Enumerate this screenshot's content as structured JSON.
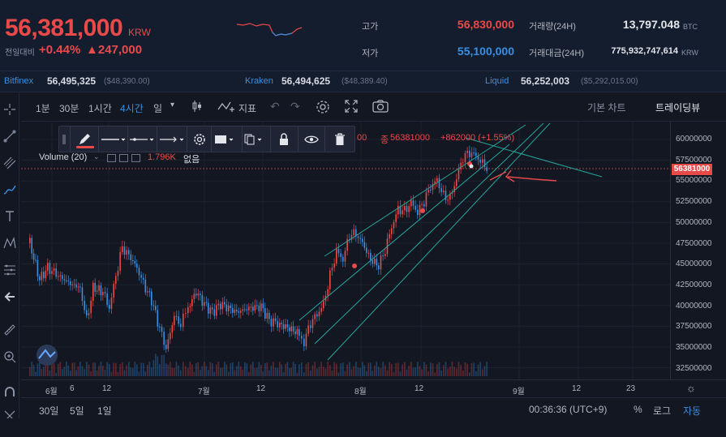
{
  "header": {
    "price": "56,381,000",
    "currency": "KRW",
    "change_label": "전일대비",
    "change_pct": "+0.44%",
    "change_amt": "▲247,000",
    "high_label": "고가",
    "high_value": "56,830,000",
    "low_label": "저가",
    "low_value": "55,100,000",
    "vol_label": "거래량(24H)",
    "vol_value": "13,797.048",
    "vol_unit": "BTC",
    "amount_label": "거래대금(24H)",
    "amount_value": "775,932,747,614",
    "amount_unit": "KRW"
  },
  "exchanges": [
    {
      "name": "Bitfinex",
      "value": "56,495,325",
      "usd": "($48,390.00)"
    },
    {
      "name": "Kraken",
      "value": "56,494,625",
      "usd": "($48,389.40)"
    },
    {
      "name": "Liquid",
      "value": "56,252,003",
      "usd": "($5,292,015.00)"
    }
  ],
  "toolbar": {
    "timeframes": [
      "1분",
      "30분",
      "1시간",
      "4시간",
      "일"
    ],
    "active_timeframe": "4시간",
    "indicator_label": "지표",
    "basic_chart": "기본 차트",
    "tradingview": "트레이딩뷰"
  },
  "legend": {
    "ohlc_tail": "00",
    "close_label": "종",
    "close_value": "56381000",
    "change": "+862000 (+1.55%)",
    "volume_label": "Volume (20)",
    "volume_value": "1.796K",
    "volume_na": "없음"
  },
  "yaxis": {
    "labels": [
      "60000000",
      "57500000",
      "55000000",
      "52500000",
      "50000000",
      "47500000",
      "45000000",
      "42500000",
      "40000000",
      "37500000",
      "35000000",
      "32500000"
    ],
    "current_price": "56381000"
  },
  "xaxis": {
    "labels": [
      "6월",
      "6",
      "12",
      "7월",
      "12",
      "8월",
      "12",
      "9월",
      "12",
      "23"
    ]
  },
  "bottom": {
    "ranges": [
      "30일",
      "5일",
      "1일"
    ],
    "time": "00:36:36 (UTC+9)",
    "percent": "%",
    "log": "로그",
    "auto": "자동"
  },
  "colors": {
    "up": "#e84a4a",
    "down": "#3b8fe0",
    "channel": "#26a69a",
    "background": "#131722"
  }
}
